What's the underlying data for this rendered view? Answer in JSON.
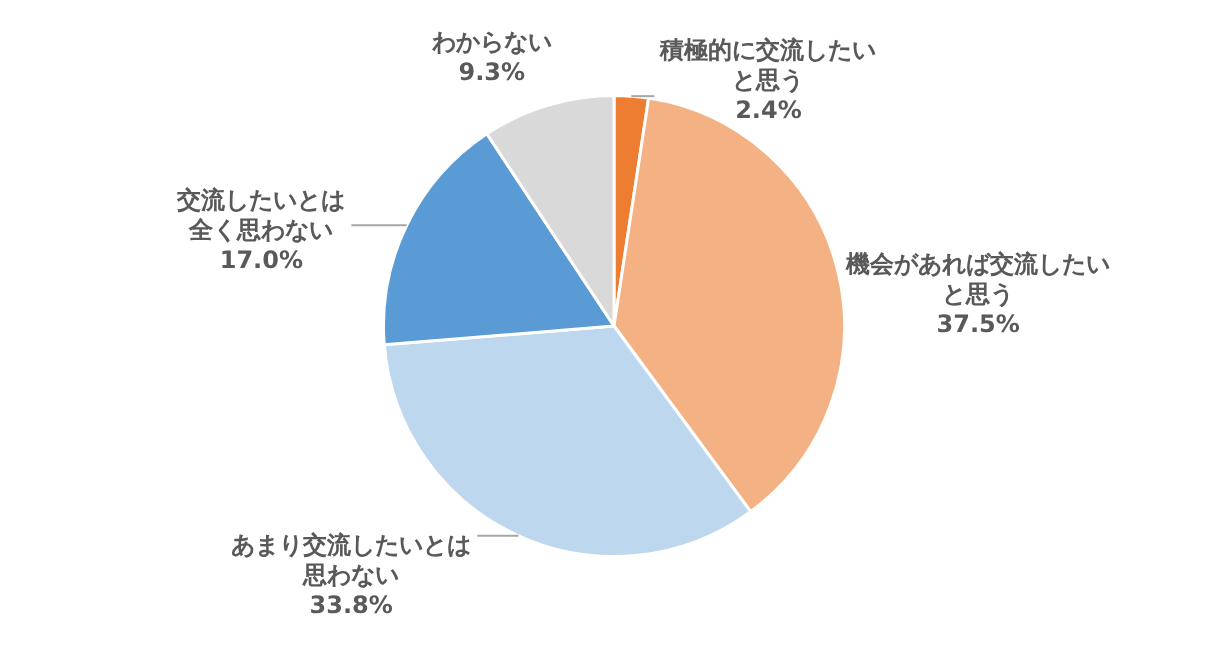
{
  "chart_data": {
    "type": "pie",
    "categories": [
      "積極的に交流したいと思う",
      "機会があれば交流したいと思う",
      "あまり交流したいとは思わない",
      "交流したいとは全く思わない",
      "わからない"
    ],
    "values": [
      2.4,
      37.5,
      33.8,
      17.0,
      9.3
    ],
    "colors": [
      "#ed7d31",
      "#f4b183",
      "#bdd7ee",
      "#5b9bd5",
      "#d9d9d9"
    ],
    "value_labels": [
      "2.4%",
      "37.5%",
      "33.8%",
      "17.0%",
      "9.3%"
    ]
  }
}
